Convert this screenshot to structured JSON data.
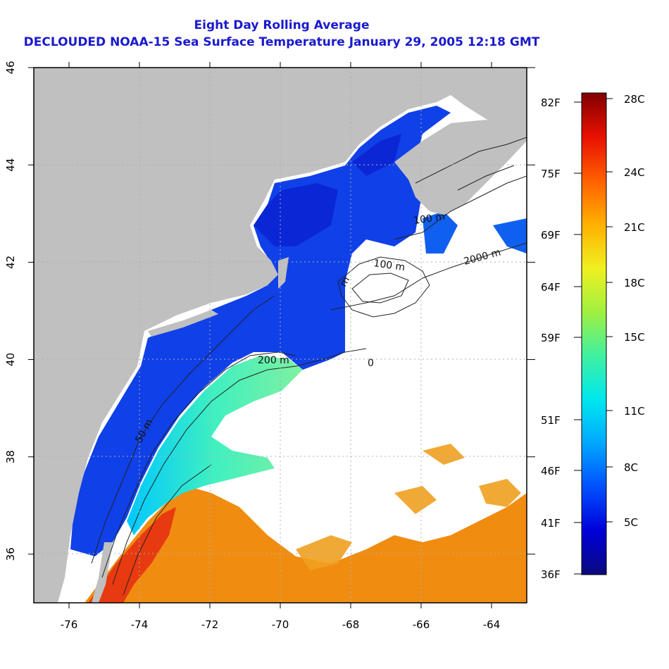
{
  "title": "Eight Day Rolling Average",
  "subtitle": "DECLOUDED NOAA-15 Sea Surface Temperature January 29, 2005 12:18 GMT",
  "map": {
    "lon_range": [
      -77,
      -63
    ],
    "lat_range": [
      35,
      46
    ],
    "x_ticks": [
      "-76",
      "-74",
      "-72",
      "-70",
      "-68",
      "-66",
      "-64"
    ],
    "y_ticks": [
      "36",
      "38",
      "40",
      "42",
      "44",
      "46"
    ],
    "grid": true,
    "colors": {
      "land": "#c0c0c0",
      "no_data": "#ffffff",
      "contour": "#222222"
    },
    "contours": [
      {
        "label": "50 m"
      },
      {
        "label": "100 m"
      },
      {
        "label": "200 m"
      },
      {
        "label": "2000 m"
      },
      {
        "label": "100 m"
      },
      {
        "label": "m"
      },
      {
        "label": "0"
      }
    ]
  },
  "colorbar": {
    "celsius": [
      "28C",
      "24C",
      "21C",
      "18C",
      "15C",
      "11C",
      "8C",
      "5C"
    ],
    "fahrenheit": [
      "82F",
      "75F",
      "69F",
      "64F",
      "59F",
      "51F",
      "46F",
      "41F",
      "36F"
    ],
    "colors": [
      "#0a0a80",
      "#0000d8",
      "#0050ff",
      "#00a8ff",
      "#00e8ee",
      "#40f0a0",
      "#a0f040",
      "#f0f020",
      "#ffb000",
      "#ff6000",
      "#e81000",
      "#800000"
    ]
  }
}
